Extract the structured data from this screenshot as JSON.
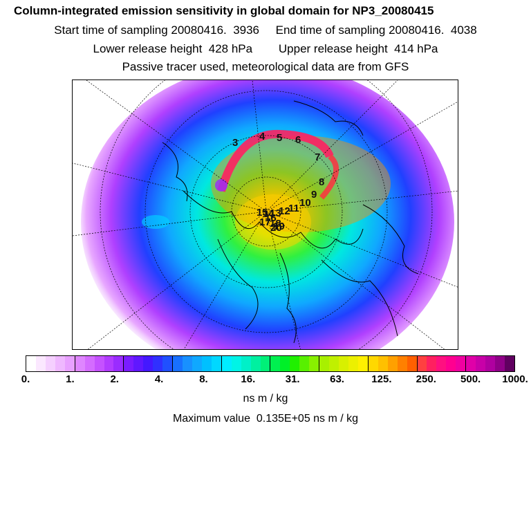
{
  "header": {
    "title": "Column-integrated emission sensitivity in global domain for NP3_20080415",
    "line2": "Start time of sampling 20080416.  3936     End time of sampling 20080416.  4038",
    "line3": "Lower release height  428 hPa        Upper release height  414 hPa",
    "line4": "Passive tracer used, meteorological data are from GFS"
  },
  "map": {
    "projection": "north polar stereographic",
    "track_markers": [
      "3",
      "4",
      "5",
      "6",
      "7",
      "8",
      "9",
      "10",
      "11",
      "12",
      "13",
      "14",
      "15",
      "16",
      "17",
      "18",
      "19",
      "20"
    ]
  },
  "colorbar": {
    "ticks": [
      "0.",
      "1.",
      "2.",
      "4.",
      "8.",
      "16.",
      "31.",
      "63.",
      "125.",
      "250.",
      "500.",
      "1000."
    ],
    "colors": [
      "#ffffff",
      "#fbe8ff",
      "#f5d0ff",
      "#efb8ff",
      "#e8a0ff",
      "#df86ff",
      "#d46cff",
      "#c552ff",
      "#b23cff",
      "#9a2cff",
      "#7a1cff",
      "#6018ff",
      "#4418ff",
      "#3030ff",
      "#2050ff",
      "#1870ff",
      "#1890ff",
      "#10a8ff",
      "#00c0ff",
      "#00d8ff",
      "#00ecff",
      "#00f4e6",
      "#00f0c8",
      "#00f0a0",
      "#00f078",
      "#00f050",
      "#00f028",
      "#20f000",
      "#58f000",
      "#88f000",
      "#a8f000",
      "#c0f000",
      "#d8f000",
      "#ecf000",
      "#fff000",
      "#ffd800",
      "#ffc000",
      "#ffa000",
      "#ff8000",
      "#ff6000",
      "#ff4040",
      "#ff2060",
      "#ff1080",
      "#ff0090",
      "#f000a0",
      "#e000a8",
      "#c800a8",
      "#b000a0",
      "#900088",
      "#600060"
    ],
    "units": "ns m / kg",
    "maximum": "Maximum value  0.135E+05 ns m / kg"
  }
}
